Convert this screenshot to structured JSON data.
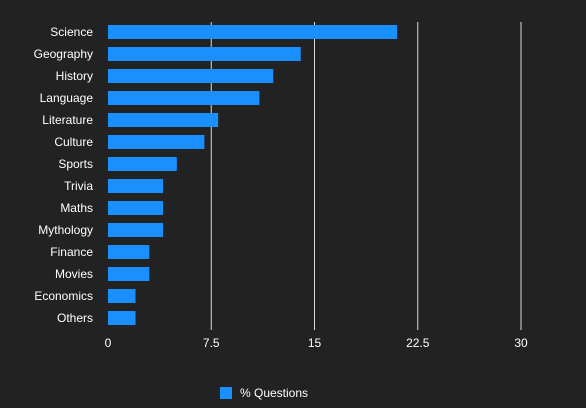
{
  "chart_data": {
    "type": "bar",
    "orientation": "horizontal",
    "categories": [
      "Science",
      "Geography",
      "History",
      "Language",
      "Literature",
      "Culture",
      "Sports",
      "Trivia",
      "Maths",
      "Mythology",
      "Finance",
      "Movies",
      "Economics",
      "Others"
    ],
    "series": [
      {
        "name": "% Questions",
        "values": [
          21,
          14,
          12,
          11,
          8,
          7,
          5,
          4,
          4,
          4,
          3,
          3,
          2,
          2
        ]
      }
    ],
    "xlim": [
      0,
      30
    ],
    "xticks": [
      "0",
      "7.5",
      "15",
      "22.5",
      "30"
    ],
    "tick_values": [
      0,
      7.5,
      15,
      22.5,
      30
    ],
    "grid": true,
    "legend_position": "bottom-center",
    "colors": {
      "background": "#222222",
      "bar": "#1a8fff",
      "grid": "#d9d9d9",
      "text": "#ffffff"
    }
  }
}
